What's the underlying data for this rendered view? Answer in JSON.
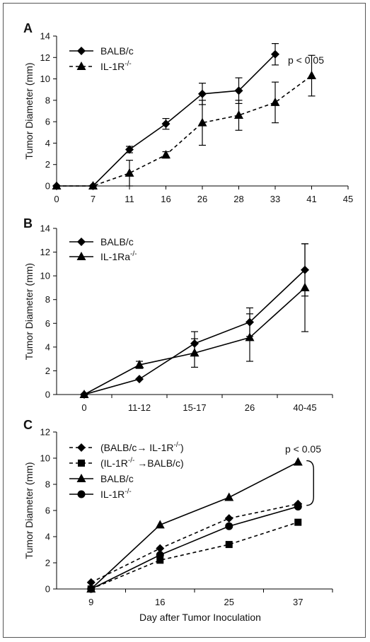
{
  "chart_data": [
    {
      "panel": "A",
      "type": "line",
      "ylabel": "Tumor Diameter (mm)",
      "xlabel": "",
      "categories": [
        "0",
        "7",
        "11",
        "16",
        "26",
        "28",
        "33",
        "41",
        "45"
      ],
      "ylim": [
        0,
        14
      ],
      "yticks": [
        0,
        2,
        4,
        6,
        8,
        10,
        12,
        14
      ],
      "legend_position": "top-left",
      "series": [
        {
          "name": "BALB/c",
          "marker": "diamond",
          "dash": "solid",
          "x": [
            "0",
            "7",
            "11",
            "16",
            "26",
            "28",
            "33"
          ],
          "values": [
            0,
            0,
            3.4,
            5.8,
            8.6,
            8.9,
            12.3
          ],
          "error": [
            0,
            0,
            0.3,
            0.5,
            1.0,
            1.2,
            1.0
          ]
        },
        {
          "name": "IL-1R",
          "name_sup": "-/-",
          "marker": "triangle",
          "dash": "dashed",
          "x": [
            "0",
            "7",
            "11",
            "16",
            "26",
            "28",
            "33",
            "41"
          ],
          "values": [
            0,
            0,
            1.2,
            2.9,
            5.9,
            6.6,
            7.8,
            10.3
          ],
          "error": [
            0,
            0,
            1.2,
            0.3,
            2.1,
            1.4,
            1.9,
            1.9
          ]
        }
      ],
      "annotation": "p < 0.05"
    },
    {
      "panel": "B",
      "type": "line",
      "ylabel": "Tumor Diameter (mm)",
      "xlabel": "",
      "categories": [
        "0",
        "11-12",
        "15-17",
        "26",
        "40-45"
      ],
      "ylim": [
        0,
        14
      ],
      "yticks": [
        0,
        2,
        4,
        6,
        8,
        10,
        12,
        14
      ],
      "legend_position": "top-left",
      "series": [
        {
          "name": "BALB/c",
          "marker": "diamond",
          "dash": "solid",
          "x": [
            "0",
            "11-12",
            "15-17",
            "26",
            "40-45"
          ],
          "values": [
            0,
            1.3,
            4.3,
            6.1,
            10.5
          ],
          "error": [
            0,
            0,
            1.0,
            1.2,
            2.2
          ]
        },
        {
          "name": "IL-1Ra",
          "name_sup": "-/-",
          "marker": "triangle",
          "dash": "solid",
          "x": [
            "0",
            "11-12",
            "15-17",
            "26",
            "40-45"
          ],
          "values": [
            0,
            2.5,
            3.5,
            4.8,
            9.0
          ],
          "error": [
            0,
            0.3,
            1.2,
            2.0,
            3.7
          ]
        }
      ]
    },
    {
      "panel": "C",
      "type": "line",
      "ylabel": "Tumor Diameter (mm)",
      "xlabel": "Day after Tumor Inoculation",
      "categories": [
        "9",
        "16",
        "25",
        "37"
      ],
      "ylim": [
        0,
        12
      ],
      "yticks": [
        0,
        2,
        4,
        6,
        8,
        10,
        12
      ],
      "legend_position": "top-left",
      "series": [
        {
          "name": "(BALB/c→ IL-1R",
          "name_sup": "-/-",
          "name_after": ")",
          "marker": "diamond",
          "dash": "dashed",
          "x": [
            "9",
            "16",
            "25",
            "37"
          ],
          "values": [
            0.5,
            3.1,
            5.4,
            6.5
          ]
        },
        {
          "name": "(IL-1R",
          "name_sup": "-/-",
          "name_after": " →BALB/c)",
          "marker": "square",
          "dash": "dashed",
          "x": [
            "9",
            "16",
            "25",
            "37"
          ],
          "values": [
            0,
            2.2,
            3.4,
            5.1
          ]
        },
        {
          "name": "BALB/c",
          "marker": "triangle",
          "dash": "solid",
          "x": [
            "9",
            "16",
            "25",
            "37"
          ],
          "values": [
            0,
            4.9,
            7.0,
            9.7
          ]
        },
        {
          "name": "IL-1R",
          "name_sup": "-/-",
          "marker": "circle",
          "dash": "solid",
          "x": [
            "9",
            "16",
            "25",
            "37"
          ],
          "values": [
            0,
            2.6,
            4.8,
            6.3
          ]
        }
      ],
      "annotation": "p < 0.05"
    }
  ]
}
